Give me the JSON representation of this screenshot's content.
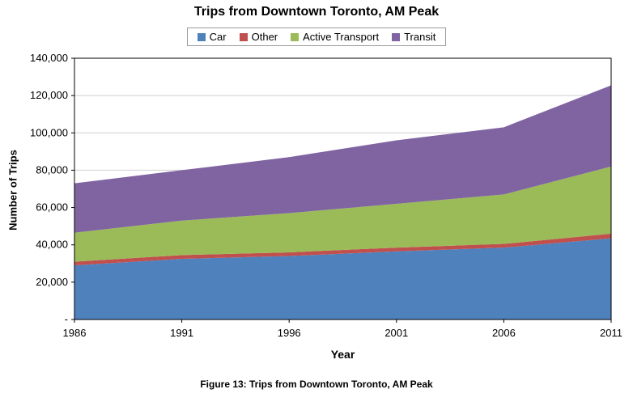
{
  "figure_caption": "Figure 13: Trips from Downtown Toronto, AM Peak",
  "chart_data": {
    "type": "area",
    "stacked": true,
    "title": "Trips from Downtown Toronto, AM Peak",
    "xlabel": "Year",
    "ylabel": "Number of Trips",
    "x": [
      1986,
      1991,
      1996,
      2001,
      2006,
      2011
    ],
    "series": [
      {
        "name": "Car",
        "color": "#4F81BD",
        "values": [
          29000,
          32500,
          34000,
          36500,
          38500,
          43500
        ]
      },
      {
        "name": "Other",
        "color": "#C0504D",
        "values": [
          2000,
          2000,
          2000,
          2000,
          2000,
          2500
        ]
      },
      {
        "name": "Active Transport",
        "color": "#9BBB59",
        "values": [
          15500,
          18500,
          21000,
          23500,
          26500,
          36000
        ]
      },
      {
        "name": "Transit",
        "color": "#8064A2",
        "values": [
          26500,
          27000,
          30000,
          34000,
          36000,
          43500
        ]
      }
    ],
    "ylim": [
      0,
      140000
    ],
    "ytick_step": 20000,
    "ytick_labels": [
      "-",
      "20,000",
      "40,000",
      "60,000",
      "80,000",
      "100,000",
      "120,000",
      "140,000"
    ],
    "grid": true,
    "legend_position": "top",
    "gridline_color": "#d0d0d0",
    "axis_color": "#000000"
  }
}
